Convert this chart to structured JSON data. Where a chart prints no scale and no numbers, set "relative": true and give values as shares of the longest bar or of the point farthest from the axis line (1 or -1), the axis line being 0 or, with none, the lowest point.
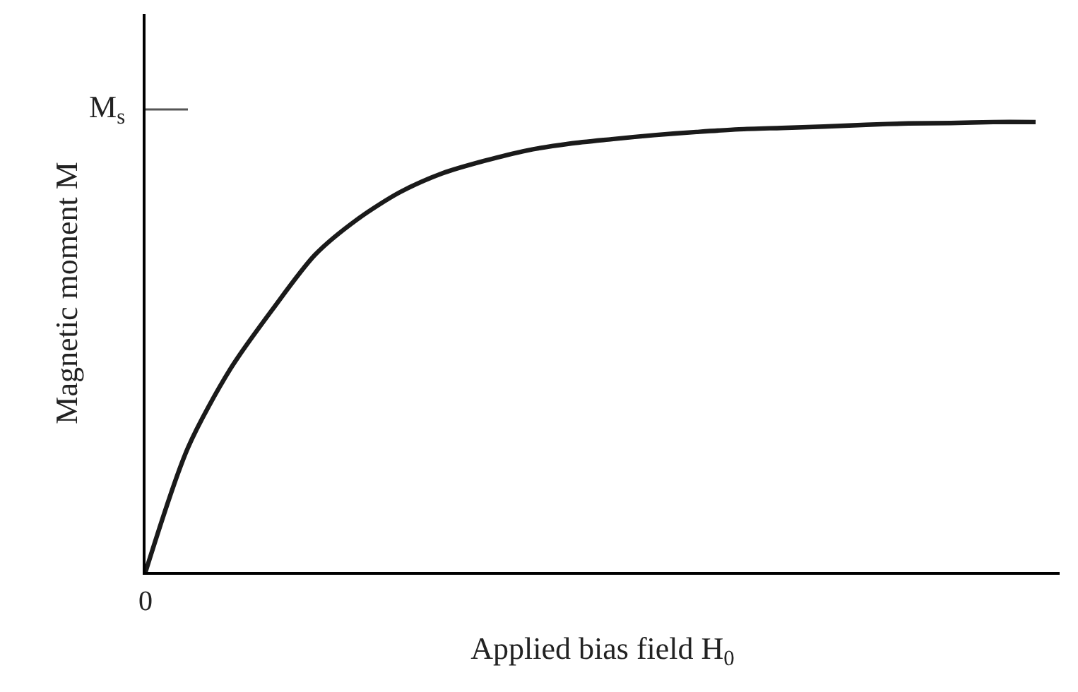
{
  "chart_data": {
    "type": "line",
    "relative": true,
    "xlabel": "Applied bias field H$_{0}$",
    "ylabel": "Magnetic moment M",
    "annotations": [
      "M$_{s}$",
      "0"
    ],
    "categories": [
      null,
      null,
      null,
      null,
      null,
      null,
      null,
      null,
      null,
      null,
      null,
      null,
      null,
      null,
      null,
      null,
      null,
      null,
      null,
      null,
      null,
      null
    ],
    "series": [
      {
        "color": "#1a1a1a",
        "values": [
          0,
          0.276,
          0.451,
          0.584,
          0.705,
          0.784,
          0.844,
          0.886,
          0.914,
          0.937,
          0.952,
          0.962,
          0.971,
          0.978,
          0.984,
          0.987,
          0.99,
          0.994,
          0.997,
          0.998,
          1.0,
          1.0
        ]
      }
    ],
    "marker": "none",
    "line_style": "solid",
    "tick_labels": false
  }
}
